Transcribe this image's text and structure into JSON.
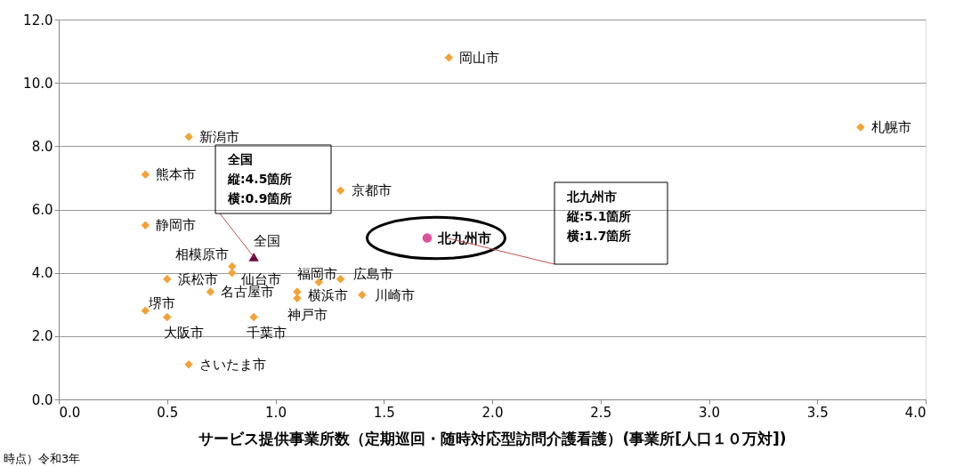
{
  "chart_data": {
    "type": "scatter",
    "xlabel": "サービス提供事業所数（定期巡回・随時対応型訪問介護看護）(事業所[人口１０万対])",
    "xlim": [
      0,
      4
    ],
    "ylim": [
      0,
      12
    ],
    "xticks": [
      {
        "value": 0,
        "label": "0.0"
      },
      0.5,
      {
        "value": 1,
        "label": "1.0"
      },
      1.5,
      {
        "value": 2,
        "label": "2.0"
      },
      2.5,
      {
        "value": 3,
        "label": "3.0"
      },
      3.5,
      {
        "value": 4,
        "label": "4.0"
      }
    ],
    "yticks": [
      {
        "value": 0,
        "label": "0.0"
      },
      {
        "value": 2,
        "label": "2.0"
      },
      {
        "value": 4,
        "label": "4.0"
      },
      {
        "value": 6,
        "label": "6.0"
      },
      {
        "value": 8,
        "label": "8.0"
      },
      {
        "value": 10,
        "label": "10.0"
      },
      {
        "value": 12,
        "label": "12.0"
      }
    ],
    "grid": "y",
    "marker": "diamond",
    "series": [
      {
        "name": "岡山市",
        "color": "#f4a236",
        "x": [
          1.8
        ],
        "values": [
          10.8
        ]
      },
      {
        "name": "札幌市",
        "color": "#f4a236",
        "x": [
          3.7
        ],
        "values": [
          8.6
        ]
      },
      {
        "name": "新潟市",
        "color": "#f4a236",
        "x": [
          0.6
        ],
        "values": [
          8.3
        ]
      },
      {
        "name": "熊本市",
        "color": "#f4a236",
        "x": [
          0.4
        ],
        "values": [
          7.1
        ]
      },
      {
        "name": "京都市",
        "color": "#f4a236",
        "x": [
          1.3
        ],
        "values": [
          6.6
        ]
      },
      {
        "name": "静岡市",
        "color": "#f4a236",
        "x": [
          0.4
        ],
        "values": [
          5.5
        ]
      },
      {
        "name": "相模原市",
        "color": "#f4a236",
        "x": [
          0.8
        ],
        "values": [
          4.2
        ]
      },
      {
        "name": "仙台市",
        "color": "#f4a236",
        "x": [
          0.8
        ],
        "values": [
          4.0
        ]
      },
      {
        "name": "浜松市",
        "color": "#f4a236",
        "x": [
          0.5
        ],
        "values": [
          3.8
        ]
      },
      {
        "name": "名古屋市",
        "color": "#f4a236",
        "x": [
          0.7
        ],
        "values": [
          3.4
        ]
      },
      {
        "name": "福岡市",
        "color": "#f4a236",
        "x": [
          1.2
        ],
        "values": [
          3.7
        ]
      },
      {
        "name": "広島市",
        "color": "#f4a236",
        "x": [
          1.3
        ],
        "values": [
          3.8
        ]
      },
      {
        "name": "横浜市",
        "color": "#f4a236",
        "x": [
          1.1
        ],
        "values": [
          3.4
        ]
      },
      {
        "name": "神戸市",
        "color": "#f4a236",
        "x": [
          1.1
        ],
        "values": [
          3.2
        ]
      },
      {
        "name": "川崎市",
        "color": "#f4a236",
        "x": [
          1.4
        ],
        "values": [
          3.3
        ]
      },
      {
        "name": "堺市",
        "color": "#f4a236",
        "x": [
          0.4
        ],
        "values": [
          2.8
        ]
      },
      {
        "name": "大阪市",
        "color": "#f4a236",
        "x": [
          0.5
        ],
        "values": [
          2.6
        ]
      },
      {
        "name": "千葉市",
        "color": "#f4a236",
        "x": [
          0.9
        ],
        "values": [
          2.6
        ]
      },
      {
        "name": "さいたま市",
        "color": "#f4a236",
        "x": [
          0.6
        ],
        "values": [
          1.1
        ]
      },
      {
        "name": "全国",
        "color": "#6b0a3c",
        "marker": "triangle",
        "x": [
          0.9
        ],
        "values": [
          4.5
        ]
      },
      {
        "name": "北九州市",
        "color": "#e0509a",
        "marker": "circle",
        "x": [
          1.7
        ],
        "values": [
          5.1
        ]
      }
    ],
    "annotations": [
      "全国",
      "縦:4.5箇所",
      {
        "text": "横:0.9箇所",
        "x": 0.9,
        "y": 4.5
      },
      "北九州市",
      "縦:5.1箇所",
      "横:1.7箇所",
      "時点）令和3年"
    ]
  }
}
